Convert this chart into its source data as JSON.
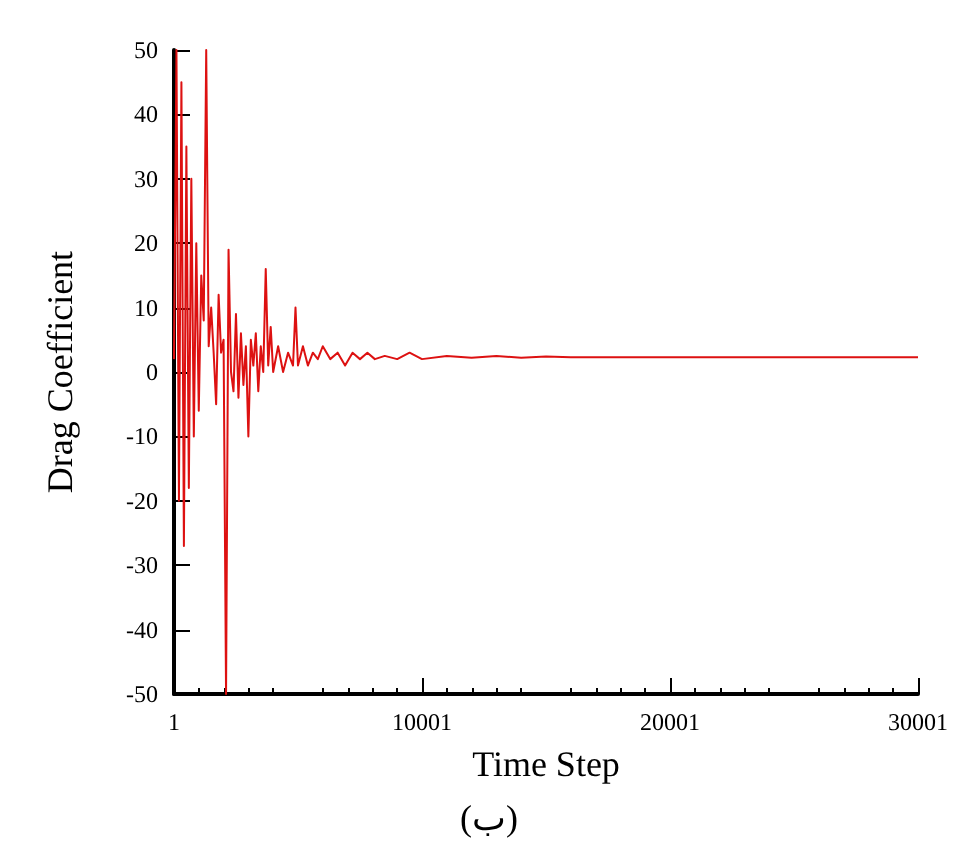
{
  "chart_data": {
    "type": "line",
    "xlabel": "Time Step",
    "ylabel": "Drag Coefficient",
    "annotations": [
      "(ب)"
    ],
    "xlim": [
      1,
      30001
    ],
    "xticks": [
      1,
      10001,
      20001,
      30001
    ],
    "ylim": [
      -50,
      50
    ],
    "yticks": [
      -50,
      -40,
      -30,
      -20,
      -10,
      0,
      10,
      20,
      30,
      40,
      50
    ],
    "grid": false,
    "series": [
      {
        "color": "#dd1111",
        "x": [
          1,
          100,
          200,
          300,
          400,
          500,
          600,
          700,
          800,
          900,
          1000,
          1100,
          1200,
          1300,
          1400,
          1500,
          1600,
          1700,
          1800,
          1900,
          2000,
          2100,
          2200,
          2300,
          2400,
          2500,
          2600,
          2700,
          2800,
          2900,
          3000,
          3100,
          3200,
          3300,
          3400,
          3500,
          3600,
          3700,
          3800,
          3900,
          4000,
          4200,
          4400,
          4600,
          4800,
          4900,
          5000,
          5200,
          5400,
          5600,
          5800,
          6000,
          6300,
          6600,
          6900,
          7200,
          7500,
          7800,
          8100,
          8500,
          9000,
          9500,
          10000,
          11000,
          12000,
          13000,
          14000,
          15000,
          16000,
          18000,
          20000,
          22000,
          24000,
          26000,
          28000,
          30001
        ],
        "values": [
          2,
          50,
          -20,
          45,
          -27,
          35,
          -18,
          30,
          -10,
          20,
          -6,
          15,
          8,
          50,
          4,
          10,
          3,
          -5,
          12,
          3,
          5,
          -50,
          19,
          0,
          -3,
          9,
          -4,
          6,
          -2,
          4,
          -10,
          5,
          1,
          6,
          -3,
          4,
          0,
          16,
          1,
          7,
          0,
          4,
          0,
          3,
          1,
          10,
          1,
          4,
          1,
          3,
          2,
          4,
          2,
          3,
          1,
          3,
          2,
          3,
          2,
          2.5,
          2,
          3,
          2,
          2.5,
          2.2,
          2.5,
          2.2,
          2.4,
          2.3,
          2.3,
          2.3,
          2.3,
          2.3,
          2.3,
          2.3,
          2.3
        ]
      }
    ]
  }
}
